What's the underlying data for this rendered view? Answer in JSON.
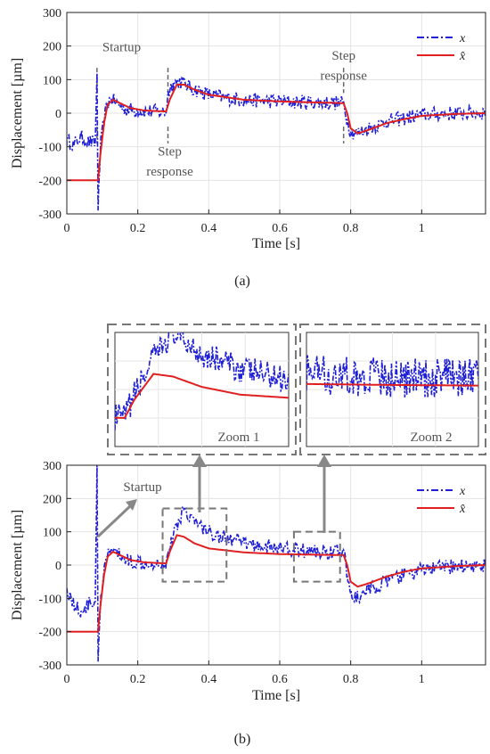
{
  "chart_data": [
    {
      "id": "a",
      "type": "line",
      "caption": "(a)",
      "title": "",
      "xlabel": "Time [s]",
      "ylabel": "Displacement  [µm]",
      "xlim": [
        0,
        1.18
      ],
      "ylim": [
        -300,
        300
      ],
      "xticks": [
        "0",
        "0.2",
        "0.4",
        "0.6",
        "0.8",
        "1"
      ],
      "yticks": [
        "-300",
        "-200",
        "-100",
        "0",
        "100",
        "200",
        "300"
      ],
      "grid": true,
      "legend_position": "top-right",
      "series": [
        {
          "name": "x",
          "style": "dash-dot",
          "color": "#1f1fd6",
          "points": [
            [
              0,
              -80
            ],
            [
              0.02,
              -95
            ],
            [
              0.04,
              -70
            ],
            [
              0.06,
              -85
            ],
            [
              0.08,
              -90
            ],
            [
              0.085,
              120
            ],
            [
              0.088,
              -290
            ],
            [
              0.095,
              -100
            ],
            [
              0.105,
              -20
            ],
            [
              0.115,
              30
            ],
            [
              0.125,
              45
            ],
            [
              0.14,
              30
            ],
            [
              0.16,
              15
            ],
            [
              0.18,
              10
            ],
            [
              0.2,
              8
            ],
            [
              0.24,
              5
            ],
            [
              0.28,
              3
            ],
            [
              0.285,
              60
            ],
            [
              0.3,
              90
            ],
            [
              0.32,
              95
            ],
            [
              0.35,
              75
            ],
            [
              0.4,
              55
            ],
            [
              0.45,
              45
            ],
            [
              0.5,
              40
            ],
            [
              0.6,
              35
            ],
            [
              0.7,
              32
            ],
            [
              0.78,
              30
            ],
            [
              0.79,
              -20
            ],
            [
              0.8,
              -55
            ],
            [
              0.82,
              -60
            ],
            [
              0.85,
              -45
            ],
            [
              0.9,
              -25
            ],
            [
              0.95,
              -15
            ],
            [
              1.0,
              -5
            ],
            [
              1.1,
              0
            ],
            [
              1.18,
              2
            ]
          ]
        },
        {
          "name": "x̂",
          "style": "solid",
          "color": "#e02020",
          "points": [
            [
              0,
              -200
            ],
            [
              0.085,
              -200
            ],
            [
              0.088,
              -200
            ],
            [
              0.095,
              -120
            ],
            [
              0.105,
              -30
            ],
            [
              0.115,
              25
            ],
            [
              0.13,
              40
            ],
            [
              0.15,
              30
            ],
            [
              0.18,
              15
            ],
            [
              0.22,
              8
            ],
            [
              0.28,
              5
            ],
            [
              0.29,
              40
            ],
            [
              0.31,
              85
            ],
            [
              0.33,
              85
            ],
            [
              0.36,
              70
            ],
            [
              0.4,
              55
            ],
            [
              0.5,
              40
            ],
            [
              0.6,
              35
            ],
            [
              0.7,
              32
            ],
            [
              0.78,
              30
            ],
            [
              0.79,
              0
            ],
            [
              0.8,
              -45
            ],
            [
              0.82,
              -60
            ],
            [
              0.85,
              -50
            ],
            [
              0.9,
              -30
            ],
            [
              0.95,
              -18
            ],
            [
              1.0,
              -8
            ],
            [
              1.1,
              -2
            ],
            [
              1.18,
              0
            ]
          ]
        }
      ],
      "annotations": [
        {
          "text": "Startup",
          "x": 0.09,
          "y": 200
        },
        {
          "text": "Step",
          "x": 0.29,
          "y": -110
        },
        {
          "text": "response",
          "x": 0.29,
          "y": -170
        },
        {
          "text": "Step",
          "x": 0.78,
          "y": 175
        },
        {
          "text": "response",
          "x": 0.78,
          "y": 115
        }
      ],
      "markers": [
        0.085,
        0.285,
        0.78
      ]
    },
    {
      "id": "b",
      "type": "line",
      "caption": "(b)",
      "title": "",
      "xlabel": "Time [s]",
      "ylabel": "Displacement  [µm]",
      "xlim": [
        0,
        1.18
      ],
      "ylim": [
        -300,
        300
      ],
      "xticks": [
        "0",
        "0.2",
        "0.4",
        "0.6",
        "0.8",
        "1"
      ],
      "yticks": [
        "-300",
        "-200",
        "-100",
        "0",
        "100",
        "200",
        "300"
      ],
      "grid": true,
      "legend_position": "top-right",
      "series": [
        {
          "name": "x",
          "style": "dash-dot",
          "color": "#1f1fd6",
          "points": [
            [
              0,
              -70
            ],
            [
              0.02,
              -120
            ],
            [
              0.04,
              -140
            ],
            [
              0.06,
              -120
            ],
            [
              0.08,
              -110
            ],
            [
              0.085,
              310
            ],
            [
              0.088,
              -290
            ],
            [
              0.095,
              -120
            ],
            [
              0.105,
              -20
            ],
            [
              0.115,
              30
            ],
            [
              0.125,
              50
            ],
            [
              0.14,
              35
            ],
            [
              0.16,
              20
            ],
            [
              0.18,
              12
            ],
            [
              0.2,
              10
            ],
            [
              0.24,
              8
            ],
            [
              0.28,
              5
            ],
            [
              0.29,
              50
            ],
            [
              0.31,
              120
            ],
            [
              0.33,
              170
            ],
            [
              0.36,
              130
            ],
            [
              0.4,
              100
            ],
            [
              0.45,
              80
            ],
            [
              0.5,
              65
            ],
            [
              0.6,
              50
            ],
            [
              0.7,
              40
            ],
            [
              0.78,
              40
            ],
            [
              0.79,
              -30
            ],
            [
              0.8,
              -85
            ],
            [
              0.82,
              -100
            ],
            [
              0.85,
              -75
            ],
            [
              0.9,
              -50
            ],
            [
              0.95,
              -30
            ],
            [
              1.0,
              -15
            ],
            [
              1.1,
              -3
            ],
            [
              1.18,
              0
            ]
          ]
        },
        {
          "name": "x̂",
          "style": "solid",
          "color": "#e02020",
          "points": [
            [
              0,
              -200
            ],
            [
              0.085,
              -200
            ],
            [
              0.088,
              -200
            ],
            [
              0.095,
              -120
            ],
            [
              0.105,
              -30
            ],
            [
              0.115,
              25
            ],
            [
              0.13,
              40
            ],
            [
              0.15,
              30
            ],
            [
              0.18,
              15
            ],
            [
              0.22,
              8
            ],
            [
              0.28,
              5
            ],
            [
              0.29,
              40
            ],
            [
              0.31,
              90
            ],
            [
              0.33,
              85
            ],
            [
              0.36,
              65
            ],
            [
              0.4,
              50
            ],
            [
              0.5,
              38
            ],
            [
              0.6,
              33
            ],
            [
              0.7,
              31
            ],
            [
              0.78,
              30
            ],
            [
              0.79,
              0
            ],
            [
              0.8,
              -50
            ],
            [
              0.82,
              -65
            ],
            [
              0.85,
              -55
            ],
            [
              0.9,
              -35
            ],
            [
              0.95,
              -20
            ],
            [
              1.0,
              -10
            ],
            [
              1.1,
              -3
            ],
            [
              1.18,
              0
            ]
          ]
        }
      ],
      "annotations": [
        {
          "text": "Startup",
          "x": 0.14,
          "y": 230
        }
      ],
      "zoom_boxes": [
        {
          "label": "Zoom 1",
          "x": [
            0.27,
            0.45
          ],
          "y": [
            -50,
            170
          ]
        },
        {
          "label": "Zoom 2",
          "x": [
            0.64,
            0.77
          ],
          "y": [
            -50,
            100
          ]
        }
      ]
    }
  ]
}
